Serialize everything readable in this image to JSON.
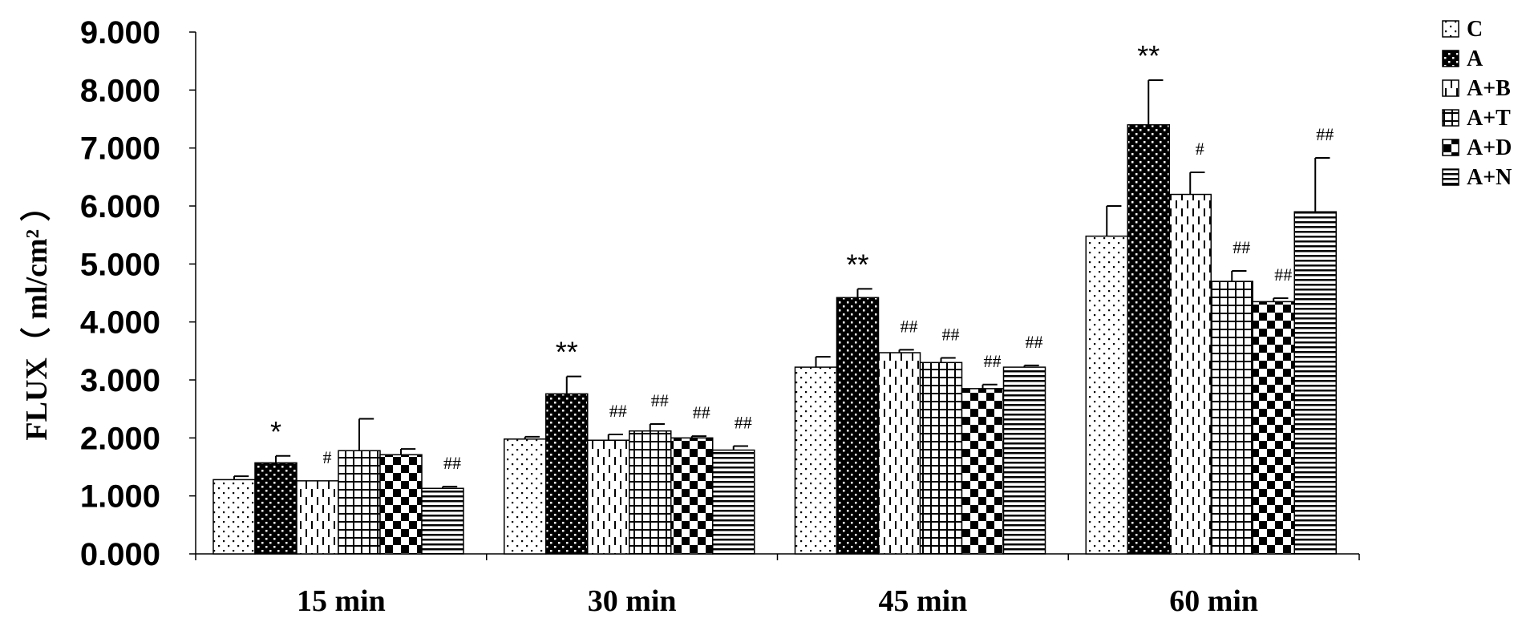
{
  "chart_data": {
    "type": "bar",
    "ylabel": "FLUX（ ml/cm² ）",
    "ylim": [
      0,
      9
    ],
    "yticks": [
      "0.000",
      "1.000",
      "2.000",
      "3.000",
      "4.000",
      "5.000",
      "6.000",
      "7.000",
      "8.000",
      "9.000"
    ],
    "grid": false,
    "legend_position": "top-right",
    "categories": [
      "15 min",
      "30 min",
      "45 min",
      "60 min"
    ],
    "series": [
      {
        "name": "C",
        "pattern": "dots-sparse",
        "values": [
          1.28,
          1.98,
          3.22,
          5.48
        ],
        "errors": [
          0.06,
          0.04,
          0.18,
          0.52
        ],
        "annotations": [
          "",
          "",
          "",
          ""
        ]
      },
      {
        "name": "A",
        "pattern": "dots-on-black",
        "values": [
          1.57,
          2.76,
          4.42,
          7.4
        ],
        "errors": [
          0.12,
          0.3,
          0.15,
          0.77
        ],
        "annotations": [
          "*",
          "**",
          "**",
          "**"
        ]
      },
      {
        "name": "A+B",
        "pattern": "dashed-vertical",
        "values": [
          1.26,
          1.96,
          3.47,
          6.2
        ],
        "errors": [
          0.0,
          0.1,
          0.05,
          0.38
        ],
        "annotations": [
          "#",
          "##",
          "##",
          "#"
        ]
      },
      {
        "name": "A+T",
        "pattern": "grid",
        "values": [
          1.78,
          2.12,
          3.3,
          4.7
        ],
        "errors": [
          0.55,
          0.12,
          0.08,
          0.18
        ],
        "annotations": [
          "",
          "##",
          "##",
          "##"
        ]
      },
      {
        "name": "A+D",
        "pattern": "checker",
        "values": [
          1.71,
          2.0,
          2.85,
          4.35
        ],
        "errors": [
          0.1,
          0.03,
          0.07,
          0.06
        ],
        "annotations": [
          "",
          "##",
          "##",
          "##"
        ]
      },
      {
        "name": "A+N",
        "pattern": "horizontal-lines",
        "values": [
          1.13,
          1.79,
          3.22,
          5.9
        ],
        "errors": [
          0.03,
          0.07,
          0.03,
          0.93
        ],
        "annotations": [
          "##",
          "##",
          "##",
          "##"
        ]
      }
    ]
  }
}
